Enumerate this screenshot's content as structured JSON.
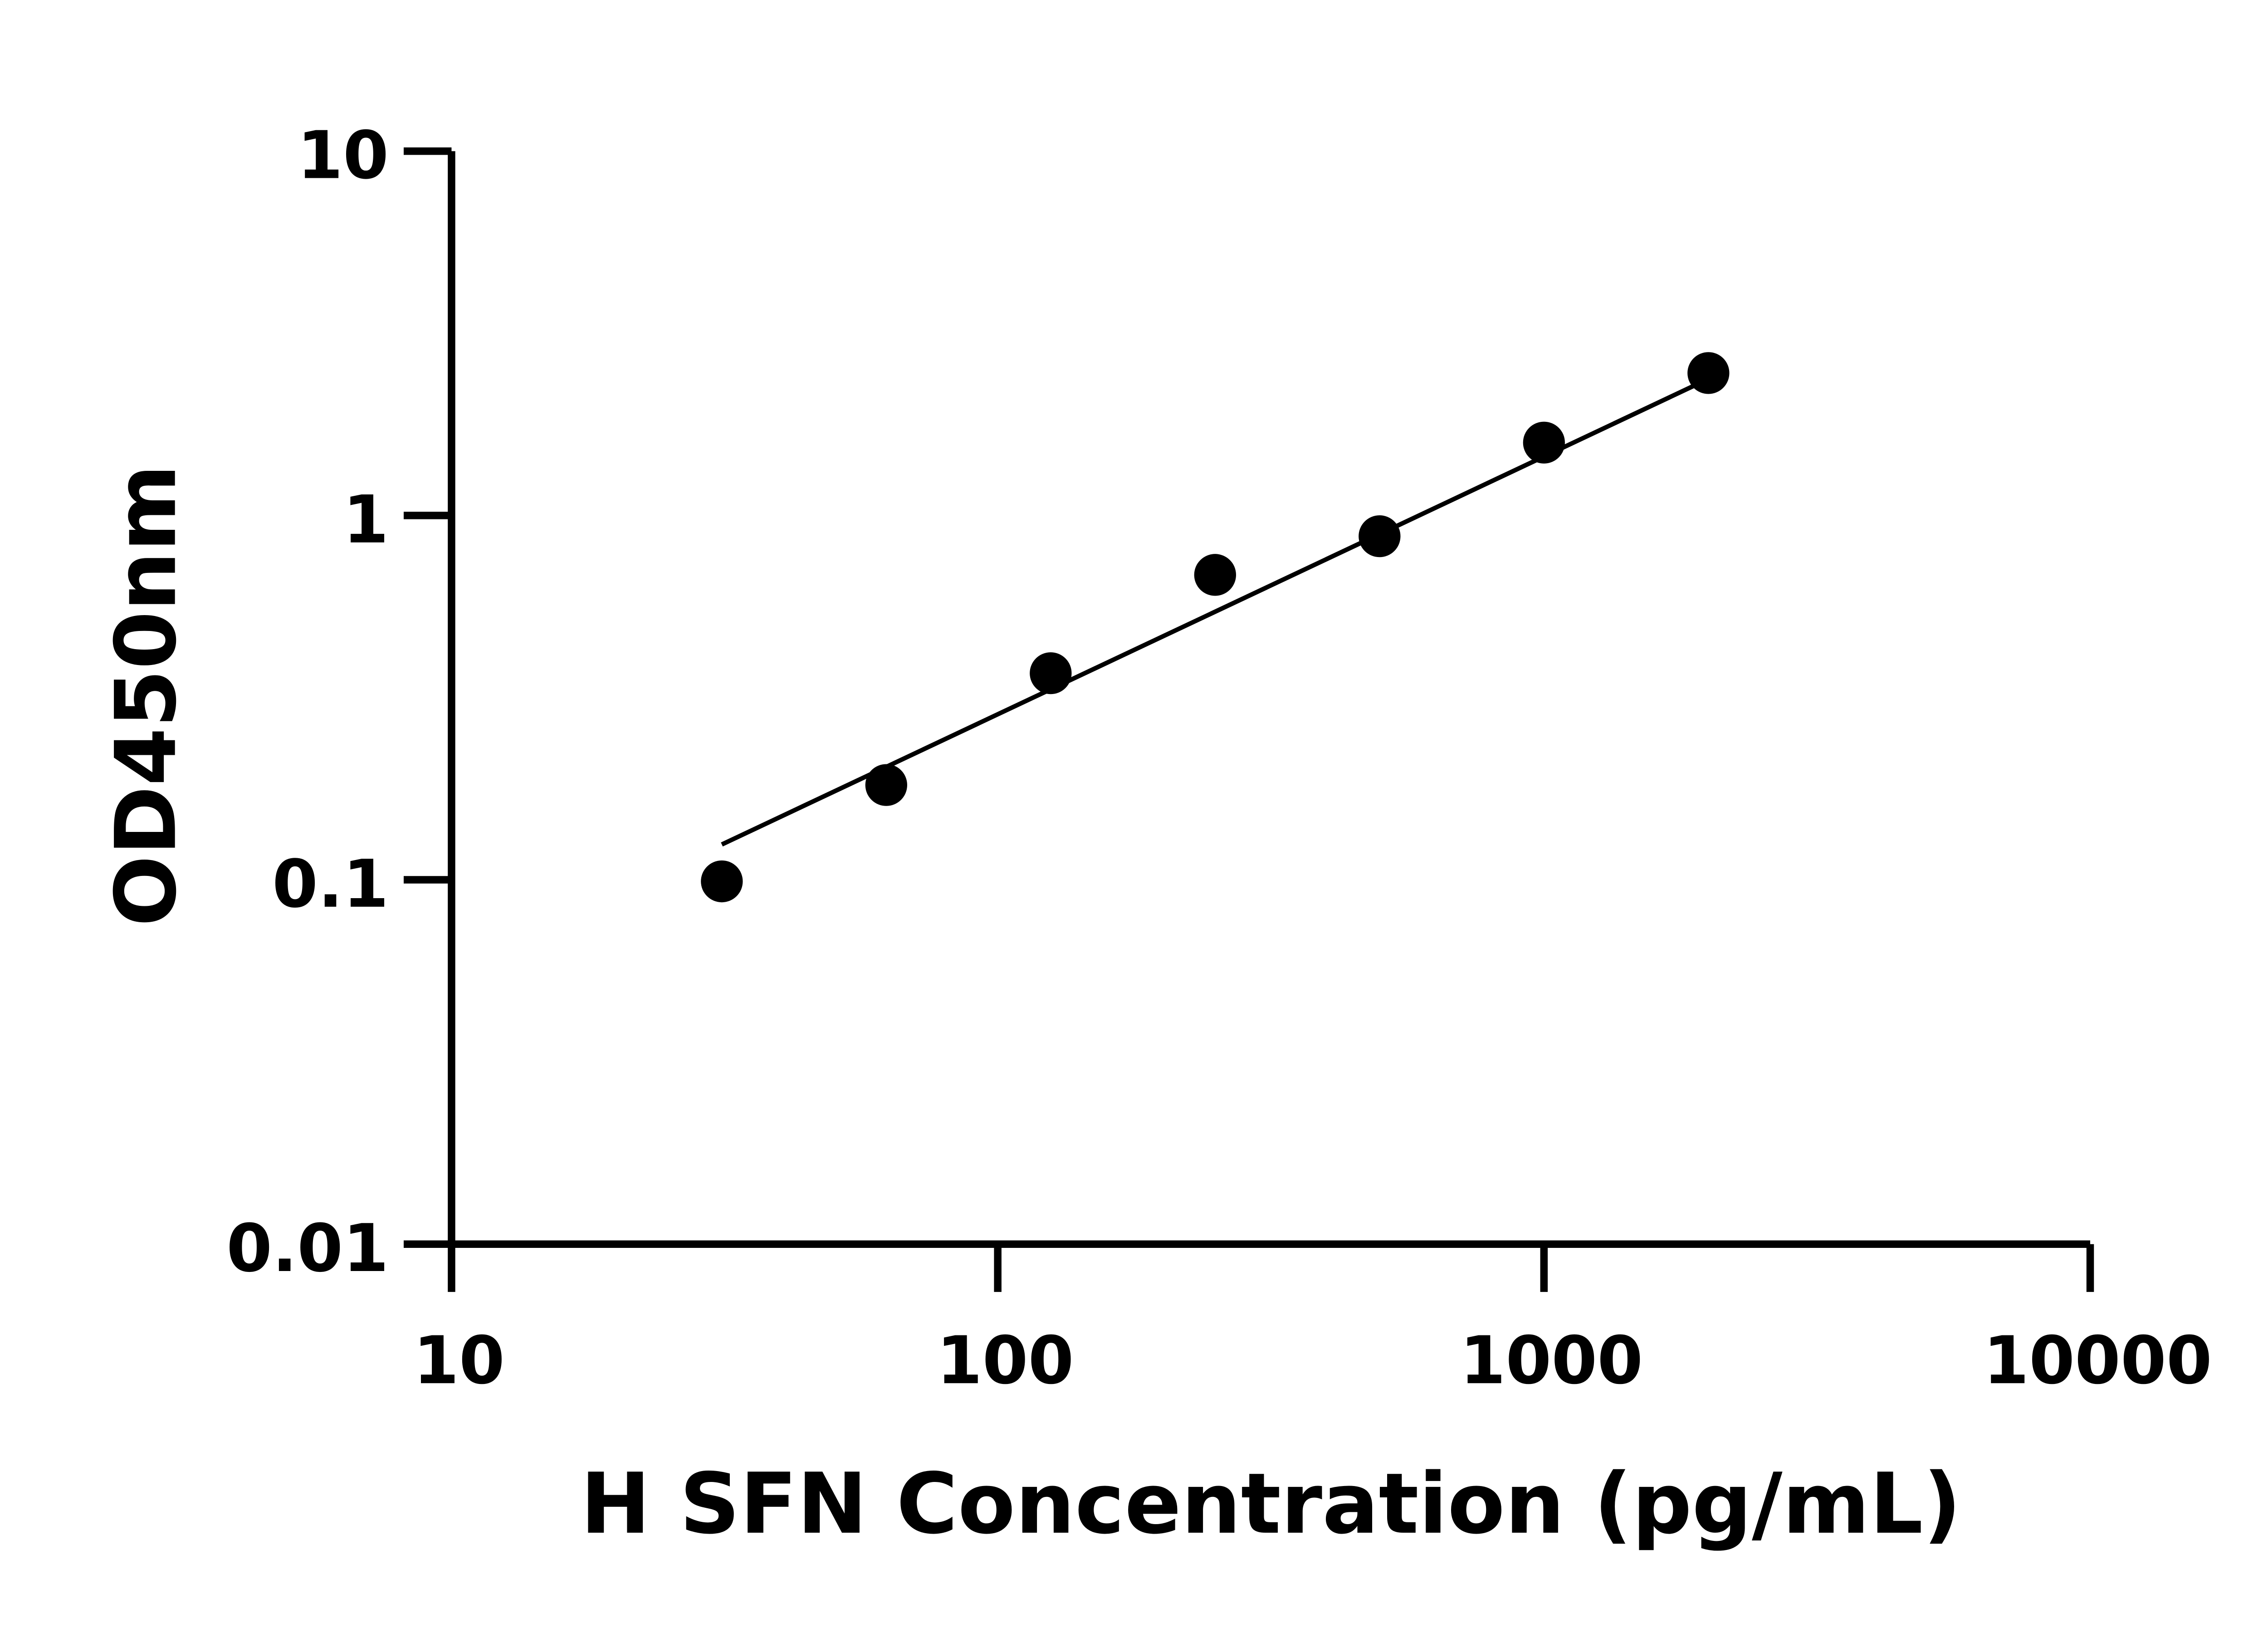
{
  "chart_data": {
    "type": "scatter",
    "xlabel": "H SFN Concentration (pg/mL)",
    "ylabel": "OD450nm",
    "xscale": "log",
    "yscale": "log",
    "xlim": [
      10,
      10000
    ],
    "ylim": [
      0.01,
      10
    ],
    "xticks": [
      "10",
      "100",
      "1000",
      "10000"
    ],
    "yticks": [
      "0.01",
      "0.1",
      "1",
      "10"
    ],
    "grid": false,
    "points": {
      "x": [
        31.25,
        62.5,
        125,
        250,
        500,
        1000,
        2000
      ],
      "y": [
        0.099,
        0.182,
        0.369,
        0.687,
        0.877,
        1.585,
        2.46
      ]
    },
    "fit_line": {
      "x": [
        31.25,
        2000
      ],
      "y": [
        0.125,
        2.37
      ]
    },
    "colors": {
      "points": "#000000",
      "line": "#000000",
      "axes": "#000000"
    }
  }
}
